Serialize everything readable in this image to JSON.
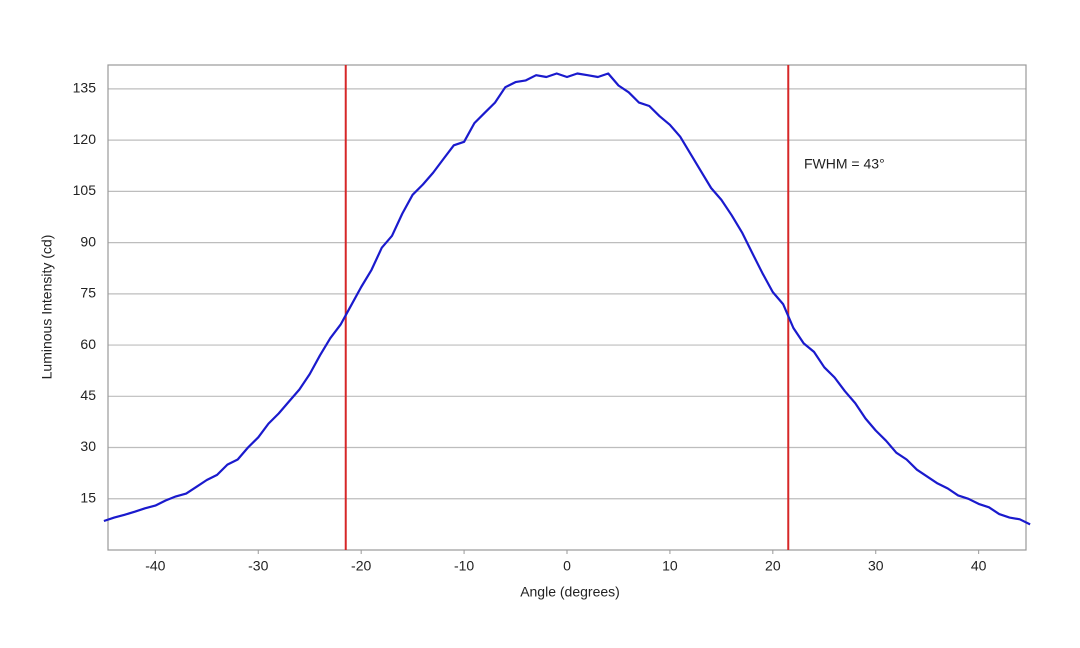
{
  "chart_data": {
    "type": "line",
    "xlabel": "Angle (degrees)",
    "ylabel": "Luminous Intensity (cd)",
    "annotation": "FWHM = 43°",
    "x": [
      -45,
      -44,
      -43,
      -42,
      -41,
      -40,
      -39,
      -38,
      -37,
      -36,
      -35,
      -34,
      -33,
      -32,
      -31,
      -30,
      -29,
      -28,
      -27,
      -26,
      -25,
      -24,
      -23,
      -22,
      -21,
      -20,
      -19,
      -18,
      -17,
      -16,
      -15,
      -14,
      -13,
      -12,
      -11,
      -10,
      -9,
      -8,
      -7,
      -6,
      -5,
      -4,
      -3,
      -2,
      -1,
      0,
      1,
      2,
      3,
      4,
      5,
      6,
      7,
      8,
      9,
      10,
      11,
      12,
      13,
      14,
      15,
      16,
      17,
      18,
      19,
      20,
      21,
      22,
      23,
      24,
      25,
      26,
      27,
      28,
      29,
      30,
      31,
      32,
      33,
      34,
      35,
      36,
      37,
      38,
      39,
      40,
      41,
      42,
      43,
      44,
      45
    ],
    "values": [
      8.5,
      9.5,
      10.3,
      11.2,
      12.2,
      13,
      14.5,
      15.7,
      16.5,
      18.5,
      20.5,
      22,
      25,
      26.5,
      30,
      33,
      37,
      40,
      43.5,
      47,
      51.5,
      57,
      62,
      66,
      71.5,
      77,
      82,
      88.5,
      92,
      98.5,
      104,
      107,
      110.5,
      114.5,
      118.5,
      119.5,
      125,
      128,
      131,
      135.5,
      137,
      137.5,
      139,
      138.5,
      139.5,
      138.5,
      139.5,
      139,
      138.5,
      139.5,
      136,
      134,
      131,
      130,
      127,
      124.5,
      121,
      116,
      111,
      106,
      102.5,
      98,
      93,
      87,
      81,
      75.5,
      72,
      65,
      60.5,
      58,
      53.5,
      50.5,
      46.5,
      43,
      38.5,
      35,
      32,
      28.5,
      26.5,
      23.5,
      21.5,
      19.5,
      18,
      16,
      15,
      13.5,
      12.5,
      10.5,
      9.5,
      9,
      7.5
    ],
    "color": "#1a1acd",
    "vlines": [
      {
        "value": -21.5,
        "color": "#d62728"
      },
      {
        "value": 21.5,
        "color": "#d62728"
      }
    ],
    "xlim": [
      -44.6,
      44.6
    ],
    "ylim": [
      0,
      142
    ],
    "xticks": [
      -40,
      -30,
      -20,
      -10,
      0,
      10,
      20,
      30,
      40
    ],
    "yticks": [
      15,
      30,
      45,
      60,
      75,
      90,
      105,
      120,
      135
    ],
    "grid": true
  }
}
